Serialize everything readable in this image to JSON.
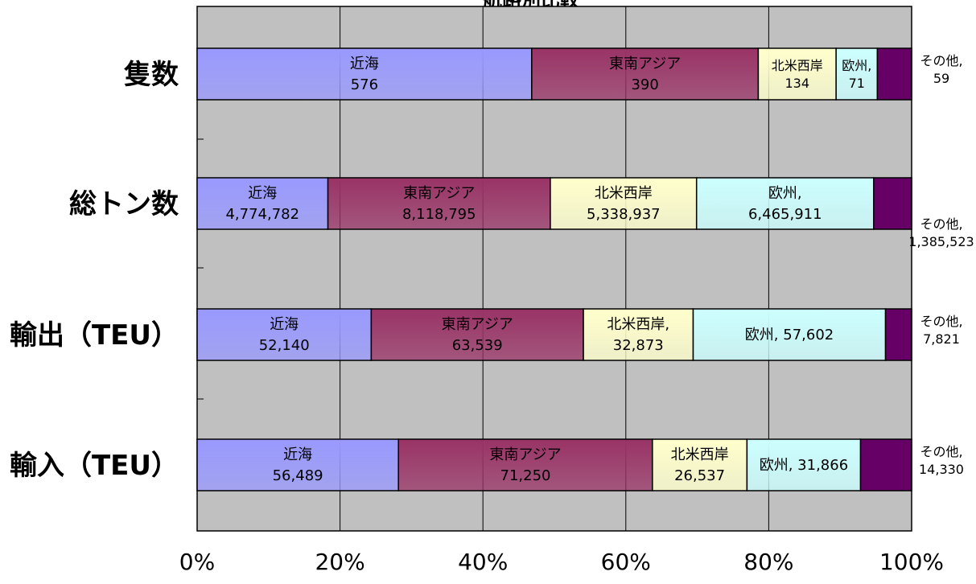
{
  "chart_data": {
    "type": "bar",
    "orientation": "horizontal",
    "stacked": "percent",
    "title": "航路別比較",
    "categories": [
      "隻数",
      "総トン数",
      "輸出（TEU）",
      "輸入（TEU）"
    ],
    "series": [
      {
        "name": "近海",
        "values": [
          576,
          4774782,
          52140,
          56489
        ],
        "color": "#9999ff",
        "labels": [
          "近海\n576",
          "近海\n4,774,782",
          "近海\n52,140",
          "近海\n56,489"
        ]
      },
      {
        "name": "東南アジア",
        "values": [
          390,
          8118795,
          63539,
          71250
        ],
        "color": "#993366",
        "labels": [
          "東南アジア\n390",
          "東南アジア\n8,118,795",
          "東南アジア\n63,539",
          "東南アジア\n71,250"
        ]
      },
      {
        "name": "北米西岸",
        "values": [
          134,
          5338937,
          32873,
          26537
        ],
        "color": "#ffffcc",
        "labels": [
          "北米西岸\n134",
          "北米西岸\n5,338,937",
          "北米西岸,\n32,873",
          "北米西岸\n26,537"
        ]
      },
      {
        "name": "欧州",
        "values": [
          71,
          6465911,
          57602,
          31866
        ],
        "color": "#ccffff",
        "labels": [
          "欧州,\n71",
          "欧州,\n6,465,911",
          "欧州, 57,602",
          "欧州, 31,866"
        ]
      },
      {
        "name": "その他",
        "values": [
          59,
          1385523,
          7821,
          14330
        ],
        "color": "#660066",
        "labels": [
          "その他,\n59",
          "その他,\n1,385,523",
          "その他,\n7,821",
          "その他,\n14,330"
        ]
      }
    ],
    "xlim": [
      0,
      100
    ],
    "xticks": [
      "0%",
      "20%",
      "40%",
      "60%",
      "80%",
      "100%"
    ],
    "grid": true,
    "plot_background": "#c0c0c0"
  }
}
